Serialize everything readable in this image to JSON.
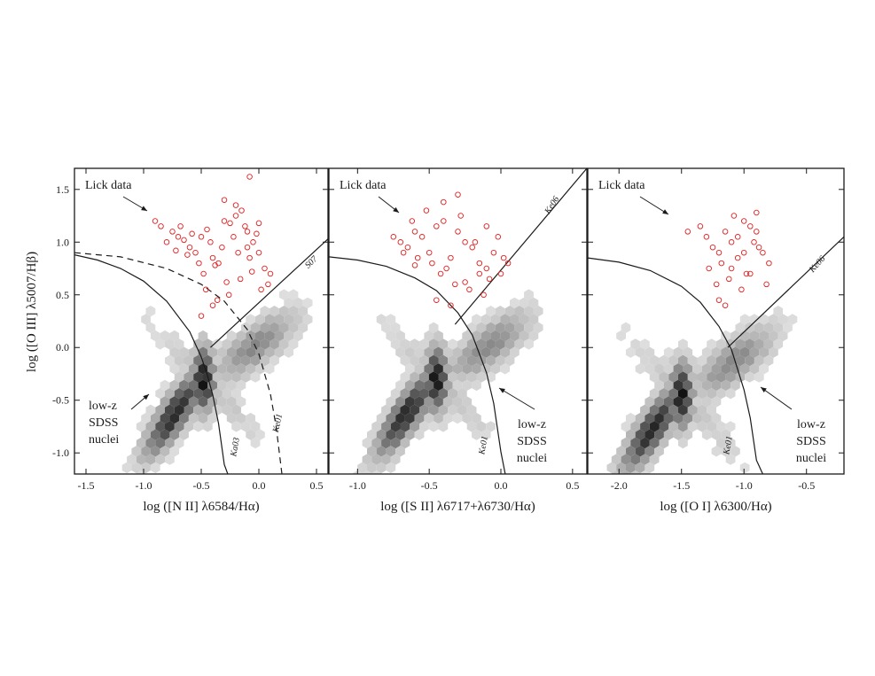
{
  "figure": {
    "ylabel": "log ([O III] λ5007/Hβ)"
  },
  "chart_data": [
    {
      "type": "scatter",
      "title": "",
      "xlabel": "log ([N II] λ6584/Hα)",
      "ylabel": "log ([O III] λ5007/Hβ)",
      "xlim": [
        -1.6,
        0.6
      ],
      "ylim": [
        -1.2,
        1.7
      ],
      "xticks": [
        "-1.5",
        "-1.0",
        "-0.5",
        "0.0",
        "0.5"
      ],
      "xtick_values": [
        -1.5,
        -1.0,
        -0.5,
        0.0,
        0.5
      ],
      "yticks": [
        "-1.0",
        "-0.5",
        "0.0",
        "0.5",
        "1.0",
        "1.5"
      ],
      "ytick_values": [
        -1.0,
        -0.5,
        0.0,
        0.5,
        1.0,
        1.5
      ],
      "annotations": {
        "lick": "Lick data",
        "sdss": [
          "low-z",
          "SDSS",
          "nuclei"
        ]
      },
      "curves": [
        {
          "name": "Ka03",
          "style": "solid",
          "x": [
            -1.6,
            -1.4,
            -1.2,
            -1.0,
            -0.8,
            -0.6,
            -0.5,
            -0.45,
            -0.4,
            -0.35,
            -0.3,
            -0.27
          ],
          "y": [
            0.88,
            0.83,
            0.75,
            0.63,
            0.44,
            0.15,
            -0.09,
            -0.25,
            -0.45,
            -0.72,
            -1.11,
            -1.2
          ]
        },
        {
          "name": "Ke01",
          "style": "dashed",
          "x": [
            -1.6,
            -1.2,
            -0.8,
            -0.5,
            -0.3,
            -0.1,
            0.0,
            0.1,
            0.15,
            0.2
          ],
          "y": [
            0.9,
            0.86,
            0.75,
            0.6,
            0.44,
            0.17,
            -0.06,
            -0.44,
            -0.75,
            -1.2
          ]
        },
        {
          "name": "S07",
          "style": "solid",
          "x": [
            -0.42,
            0.6
          ],
          "y": [
            0.0,
            1.03
          ]
        }
      ],
      "density_peak": [
        -0.48,
        -0.3
      ],
      "points": {
        "color": "#e02020",
        "x": [
          -0.9,
          -0.85,
          -0.75,
          -0.7,
          -0.65,
          -0.6,
          -0.55,
          -0.5,
          -0.45,
          -0.4,
          -0.35,
          -0.3,
          -0.25,
          -0.2,
          -0.15,
          -0.1,
          -0.05,
          0.0,
          0.05,
          0.1,
          -0.8,
          -0.72,
          -0.62,
          -0.52,
          -0.42,
          -0.32,
          -0.22,
          -0.12,
          -0.02,
          0.08,
          -0.68,
          -0.58,
          -0.48,
          -0.38,
          -0.28,
          -0.18,
          -0.08,
          0.02,
          -0.46,
          -0.36,
          -0.26,
          -0.16,
          -0.06,
          -0.3,
          -0.2,
          -0.1,
          0.0,
          -0.5,
          -0.4,
          -0.08
        ],
        "y": [
          1.2,
          1.15,
          1.1,
          1.05,
          1.02,
          0.95,
          0.9,
          1.05,
          1.12,
          0.85,
          0.8,
          1.2,
          1.18,
          1.25,
          1.3,
          1.1,
          1.0,
          0.9,
          0.75,
          0.7,
          1.0,
          0.92,
          0.88,
          0.8,
          1.0,
          0.95,
          1.05,
          1.15,
          1.08,
          0.6,
          1.15,
          1.08,
          0.7,
          0.78,
          0.62,
          0.9,
          0.85,
          0.55,
          0.55,
          0.45,
          0.5,
          0.65,
          0.72,
          1.4,
          1.35,
          0.95,
          1.18,
          0.3,
          0.4,
          1.62
        ]
      }
    },
    {
      "type": "scatter",
      "title": "",
      "xlabel": "log ([S II] λ6717+λ6730/Hα)",
      "ylabel": "",
      "xlim": [
        -1.2,
        0.6
      ],
      "ylim": [
        -1.2,
        1.7
      ],
      "xticks": [
        "-1.0",
        "-0.5",
        "0.0",
        "0.5"
      ],
      "xtick_values": [
        -1.0,
        -0.5,
        0.0,
        0.5
      ],
      "yticks": [],
      "ytick_values": [
        -1.0,
        -0.5,
        0.0,
        0.5,
        1.0,
        1.5
      ],
      "annotations": {
        "lick": "Lick data",
        "sdss": [
          "low-z",
          "SDSS",
          "nuclei"
        ]
      },
      "curves": [
        {
          "name": "Ke01",
          "style": "solid",
          "x": [
            -1.2,
            -1.0,
            -0.8,
            -0.6,
            -0.45,
            -0.3,
            -0.2,
            -0.1,
            -0.05,
            0.0,
            0.03
          ],
          "y": [
            0.86,
            0.83,
            0.77,
            0.66,
            0.54,
            0.33,
            0.12,
            -0.24,
            -0.53,
            -0.99,
            -1.2
          ]
        },
        {
          "name": "Ke06",
          "style": "solid",
          "x": [
            -0.32,
            0.6
          ],
          "y": [
            0.22,
            1.7
          ]
        }
      ],
      "density_peak": [
        -0.45,
        -0.3
      ],
      "points": {
        "color": "#e02020",
        "x": [
          -0.75,
          -0.7,
          -0.65,
          -0.6,
          -0.55,
          -0.5,
          -0.45,
          -0.4,
          -0.35,
          -0.3,
          -0.25,
          -0.2,
          -0.15,
          -0.1,
          -0.05,
          0.0,
          0.05,
          -0.68,
          -0.58,
          -0.48,
          -0.38,
          -0.28,
          -0.18,
          -0.08,
          0.02,
          -0.62,
          -0.52,
          -0.42,
          -0.32,
          -0.22,
          -0.12,
          -0.02,
          -0.45,
          -0.35,
          -0.25,
          -0.15,
          -0.6,
          -0.3,
          -0.1,
          -0.4
        ],
        "y": [
          1.05,
          1.0,
          0.95,
          1.1,
          1.05,
          0.9,
          1.15,
          1.2,
          0.85,
          1.1,
          1.0,
          0.95,
          0.8,
          0.75,
          0.9,
          0.7,
          0.8,
          0.9,
          0.85,
          0.8,
          0.75,
          1.25,
          1.0,
          0.65,
          0.85,
          1.2,
          1.3,
          0.7,
          0.6,
          0.55,
          0.5,
          1.05,
          0.45,
          0.4,
          0.62,
          0.7,
          0.78,
          1.45,
          1.15,
          1.38
        ]
      }
    },
    {
      "type": "scatter",
      "title": "",
      "xlabel": "log ([O I] λ6300/Hα)",
      "ylabel": "",
      "xlim": [
        -2.25,
        -0.2
      ],
      "ylim": [
        -1.2,
        1.7
      ],
      "xticks": [
        "-2.0",
        "-1.5",
        "-1.0",
        "-0.5"
      ],
      "xtick_values": [
        -2.0,
        -1.5,
        -1.0,
        -0.5
      ],
      "yticks": [],
      "ytick_values": [
        -1.0,
        -0.5,
        0.0,
        0.5,
        1.0,
        1.5
      ],
      "annotations": {
        "lick": "Lick data",
        "sdss": [
          "low-z",
          "SDSS",
          "nuclei"
        ]
      },
      "curves": [
        {
          "name": "Ke01",
          "style": "solid",
          "x": [
            -2.25,
            -2.0,
            -1.75,
            -1.5,
            -1.35,
            -1.2,
            -1.1,
            -1.0,
            -0.95,
            -0.9,
            -0.85
          ],
          "y": [
            0.85,
            0.81,
            0.73,
            0.58,
            0.43,
            0.2,
            -0.02,
            -0.4,
            -0.67,
            -1.07,
            -1.2
          ]
        },
        {
          "name": "Ke06",
          "style": "solid",
          "x": [
            -1.13,
            -0.2
          ],
          "y": [
            0.0,
            1.05
          ]
        }
      ],
      "density_peak": [
        -1.5,
        -0.45
      ],
      "points": {
        "color": "#e02020",
        "x": [
          -1.3,
          -1.25,
          -1.2,
          -1.15,
          -1.1,
          -1.05,
          -1.0,
          -0.95,
          -0.9,
          -0.85,
          -0.8,
          -1.28,
          -1.18,
          -1.08,
          -0.98,
          -0.88,
          -1.22,
          -1.12,
          -1.02,
          -0.92,
          -0.82,
          -1.35,
          -1.2,
          -1.1,
          -1.0,
          -0.9,
          -1.15,
          -1.05,
          -0.95,
          -1.45
        ],
        "y": [
          1.05,
          0.95,
          0.9,
          1.1,
          1.0,
          0.85,
          1.2,
          1.15,
          1.1,
          0.9,
          0.8,
          0.75,
          0.8,
          1.25,
          0.7,
          0.95,
          0.6,
          0.65,
          0.55,
          1.0,
          0.6,
          1.15,
          0.45,
          0.75,
          0.9,
          1.28,
          0.4,
          1.05,
          0.7,
          1.1
        ]
      }
    }
  ]
}
